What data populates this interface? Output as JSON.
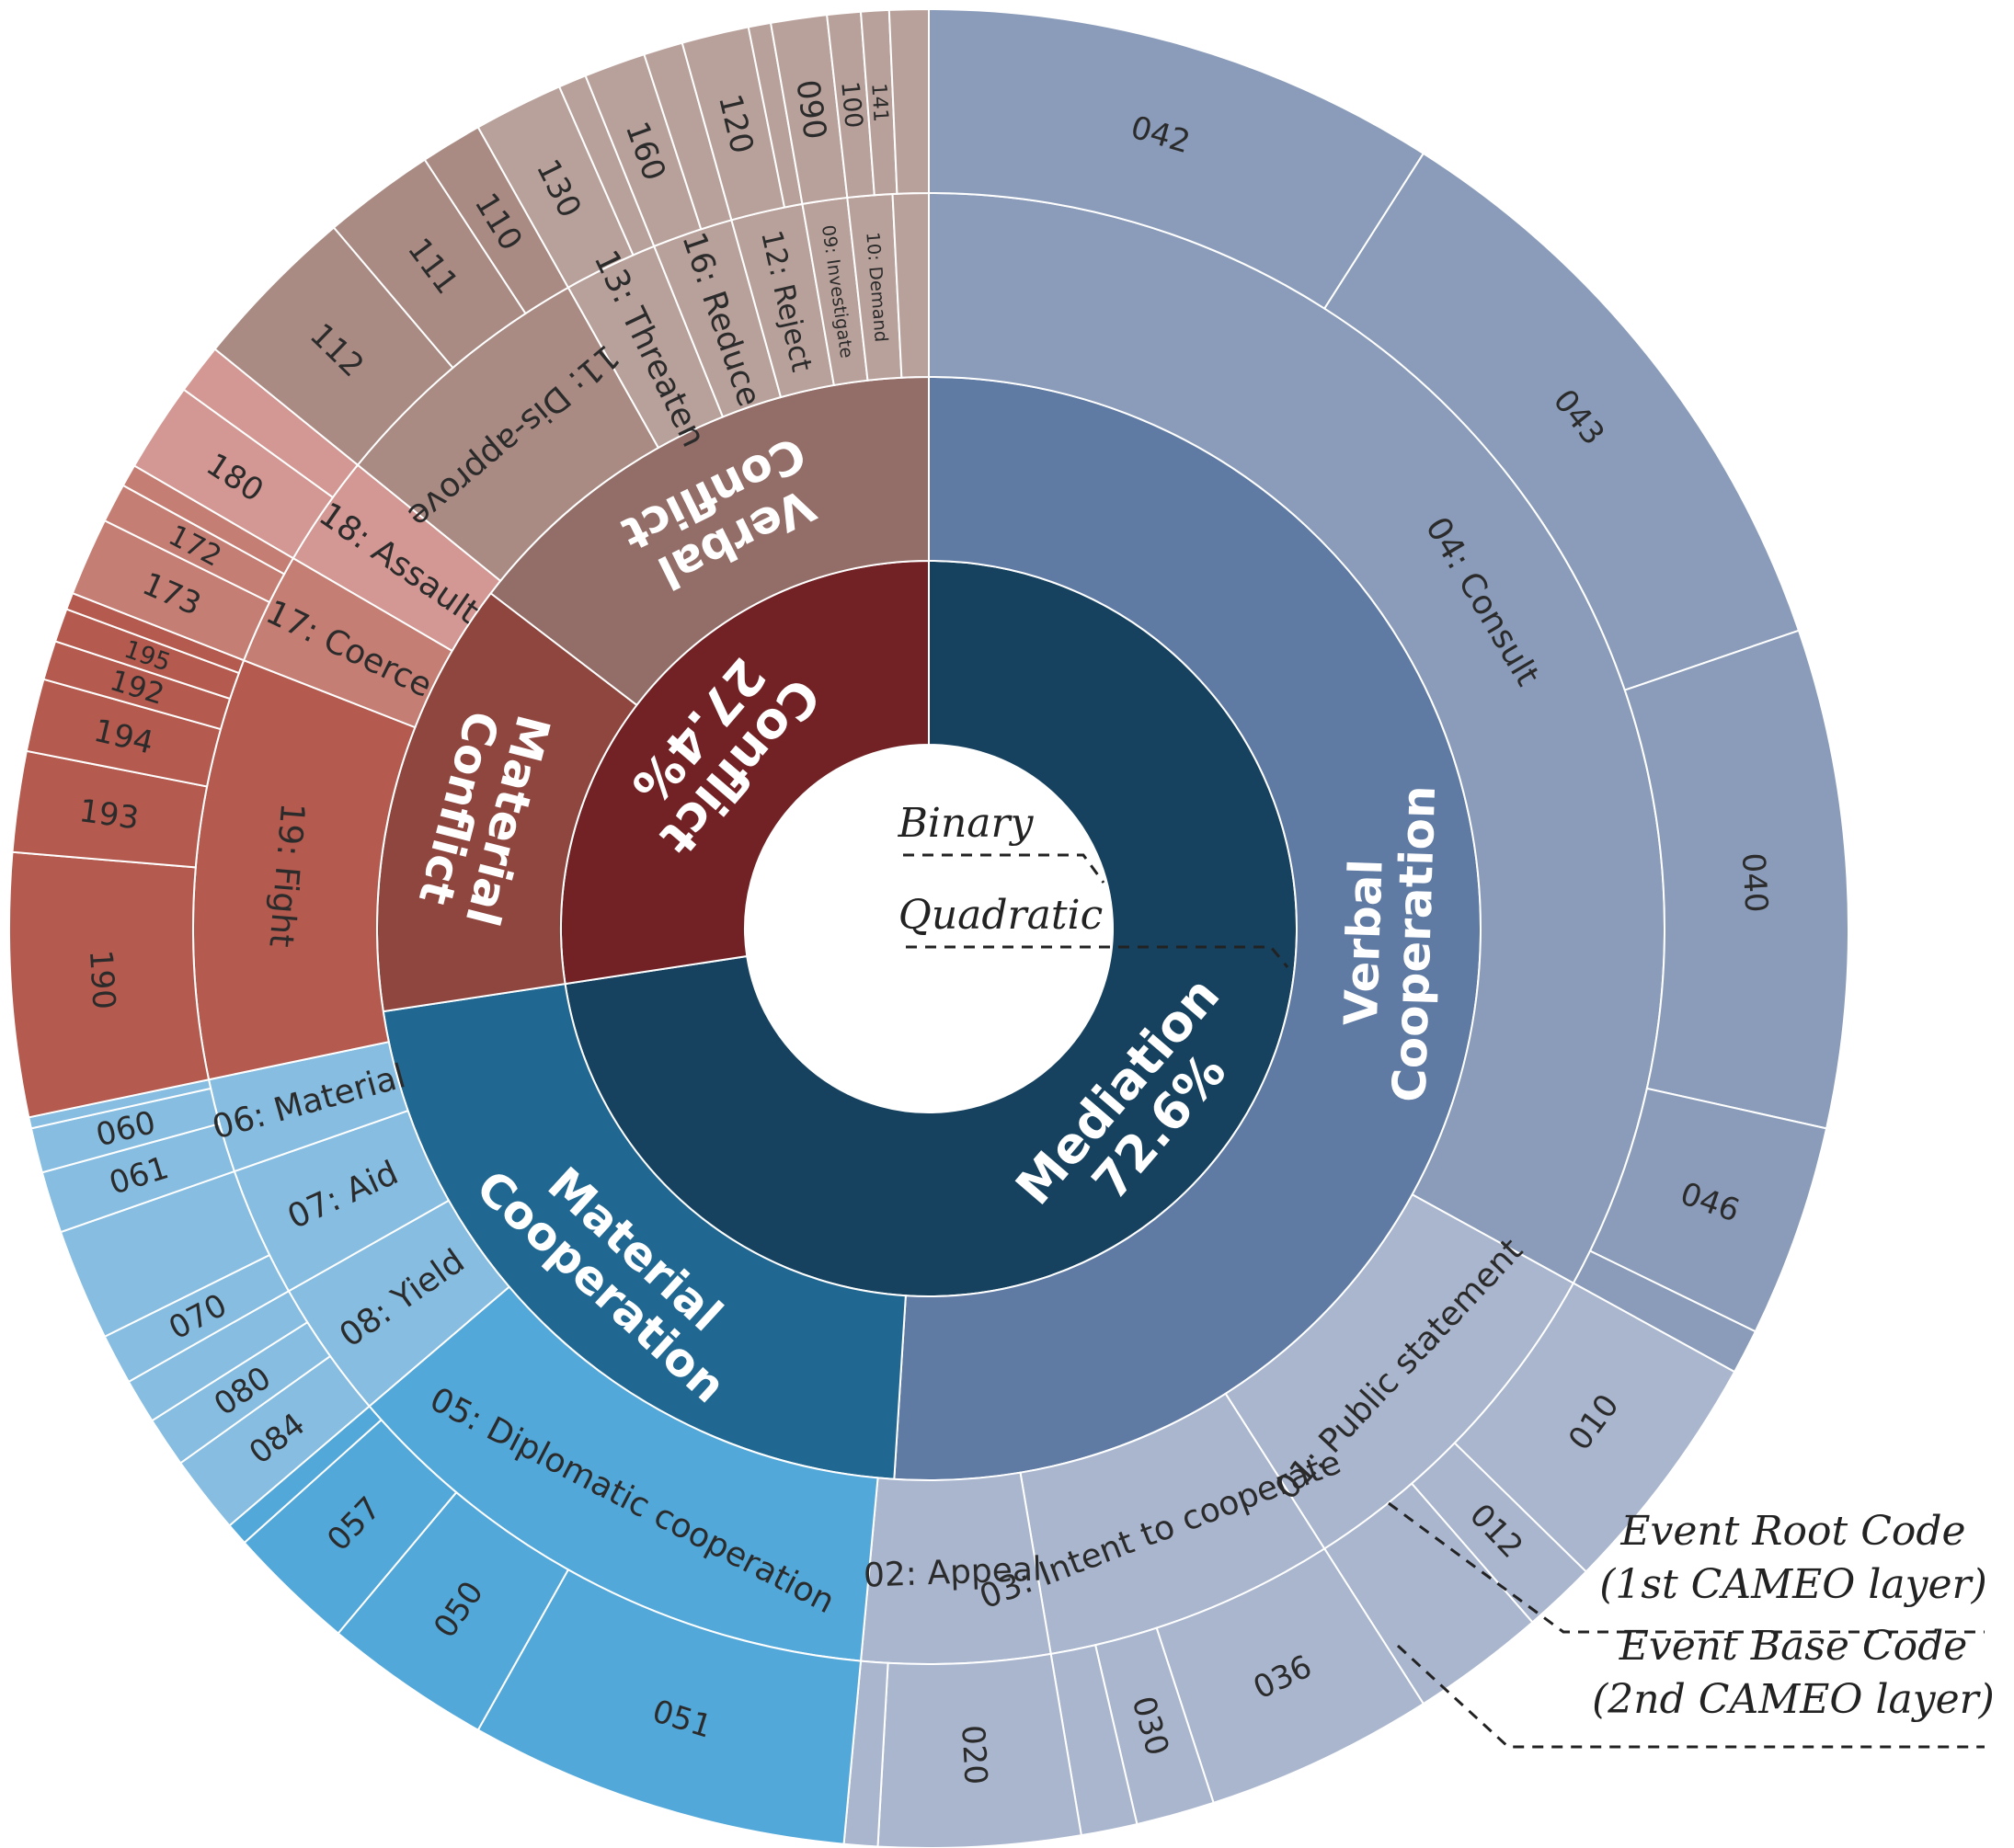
{
  "chart_data": {
    "type": "sunburst",
    "title": "",
    "levels": [
      {
        "name": "Binary"
      },
      {
        "name": "Quadratic"
      },
      {
        "name": "Event Root Code",
        "subname": "(1st CAMEO layer)"
      },
      {
        "name": "Event Base Code",
        "subname": "(2nd CAMEO layer)"
      }
    ],
    "colors": {
      "mediation": "#16425f",
      "verbal_cooperation": "#5f7aa3",
      "verbal_cooperation_outer": "#8a9cb9",
      "verbal_cooperation_light": "#a9b6ce",
      "material_cooperation": "#206791",
      "diplomatic": "#53a8da",
      "material_coop_light": "#86bde1",
      "conflict": "#722225",
      "material_conflict": "#8e463f",
      "fight": "#b45a4e",
      "coerce": "#c57e74",
      "assault": "#d39893",
      "verbal_conflict": "#936d67",
      "verbal_conflict_light": "#a98b84",
      "verbal_conflict_lighter": "#b9a19b"
    },
    "binary": [
      {
        "label": "Mediation",
        "value_label": "72.6%",
        "value": 72.6,
        "color_key": "mediation"
      },
      {
        "label": "Conflict",
        "value_label": "27.4%",
        "value": 27.4,
        "color_key": "conflict"
      }
    ],
    "quadratic": [
      {
        "label": "Verbal Cooperation",
        "value": 51.0,
        "color_key": "verbal_cooperation"
      },
      {
        "label": "Material Cooperation",
        "value": 21.6,
        "color_key": "material_cooperation"
      },
      {
        "label": "Material Conflict",
        "value": 12.8,
        "color_key": "material_conflict"
      },
      {
        "label": "Verbal Conflict",
        "value": 14.6,
        "color_key": "verbal_conflict"
      }
    ],
    "root_codes": [
      {
        "label": "04: Consult",
        "value": 33.6,
        "color_key": "verbal_cooperation_outer"
      },
      {
        "label": "01: Public statement",
        "value": 8.1,
        "color_key": "verbal_cooperation_light"
      },
      {
        "label": "03: Intent to cooperate",
        "value": 6.5,
        "color_key": "verbal_cooperation_light"
      },
      {
        "label": "02: Appeal",
        "value": 4.2,
        "color_key": "verbal_cooperation_light"
      },
      {
        "label": "05: Diplomatic cooperation",
        "value": 12.5,
        "color_key": "diplomatic"
      },
      {
        "label": "08: Yield",
        "value": 3.1,
        "color_key": "material_coop_light"
      },
      {
        "label": "07: Aid",
        "value": 2.9,
        "color_key": "material_coop_light"
      },
      {
        "label": "06: Material",
        "value": 2.1,
        "color_key": "material_coop_light"
      },
      {
        "label": "19: Fight",
        "value": 9.4,
        "color_key": "fight"
      },
      {
        "label": "17: Coerce",
        "value": 2.5,
        "color_key": "coerce"
      },
      {
        "label": "18: Assault",
        "value": 2.5,
        "color_key": "assault"
      },
      {
        "label": "11: Dis-approve",
        "value": 6.1,
        "color_key": "verbal_conflict_light"
      },
      {
        "label": "13: Threaten",
        "value": 2.1,
        "color_key": "verbal_conflict_lighter"
      },
      {
        "label": "16: Reduce",
        "value": 1.8,
        "color_key": "verbal_conflict_lighter"
      },
      {
        "label": "12: Reject",
        "value": 1.6,
        "color_key": "verbal_conflict_lighter"
      },
      {
        "label": "09: Investigate",
        "value": 1.0,
        "color_key": "verbal_conflict_lighter"
      },
      {
        "label": "10: Demand",
        "value": 1.0,
        "color_key": "verbal_conflict_lighter"
      },
      {
        "label": "",
        "value": 0.8,
        "color_key": "verbal_conflict_lighter"
      }
    ],
    "base_codes": [
      {
        "label": "042",
        "value": 9.2,
        "color_key": "verbal_cooperation_outer"
      },
      {
        "label": "043",
        "value": 10.9,
        "color_key": "verbal_cooperation_outer"
      },
      {
        "label": "040",
        "value": 8.9,
        "color_key": "verbal_cooperation_outer"
      },
      {
        "label": "046",
        "value": 3.8,
        "color_key": "verbal_cooperation_outer"
      },
      {
        "label": "",
        "value": 0.8,
        "color_key": "verbal_cooperation_outer"
      },
      {
        "label": "010",
        "value": 4.4,
        "color_key": "verbal_cooperation_light"
      },
      {
        "label": "012",
        "value": 1.3,
        "color_key": "verbal_cooperation_light"
      },
      {
        "label": "",
        "value": 2.4,
        "color_key": "verbal_cooperation_light"
      },
      {
        "label": "036",
        "value": 4.1,
        "color_key": "verbal_cooperation_light"
      },
      {
        "label": "030",
        "value": 1.4,
        "color_key": "verbal_cooperation_light"
      },
      {
        "label": "",
        "value": 1.0,
        "color_key": "verbal_cooperation_light"
      },
      {
        "label": "020",
        "value": 3.6,
        "color_key": "verbal_cooperation_light"
      },
      {
        "label": "",
        "value": 0.6,
        "color_key": "verbal_cooperation_light"
      },
      {
        "label": "051",
        "value": 6.8,
        "color_key": "diplomatic"
      },
      {
        "label": "050",
        "value": 3.0,
        "color_key": "diplomatic"
      },
      {
        "label": "057",
        "value": 2.3,
        "color_key": "diplomatic"
      },
      {
        "label": "",
        "value": 0.4,
        "color_key": "diplomatic"
      },
      {
        "label": "084",
        "value": 1.4,
        "color_key": "material_coop_light"
      },
      {
        "label": "080",
        "value": 0.9,
        "color_key": "material_coop_light"
      },
      {
        "label": "",
        "value": 0.8,
        "color_key": "material_coop_light"
      },
      {
        "label": "070",
        "value": 0.9,
        "color_key": "material_coop_light"
      },
      {
        "label": "",
        "value": 2.0,
        "color_key": "material_coop_light"
      },
      {
        "label": "061",
        "value": 1.1,
        "color_key": "material_coop_light"
      },
      {
        "label": "060",
        "value": 0.8,
        "color_key": "material_coop_light"
      },
      {
        "label": "",
        "value": 0.2,
        "color_key": "material_coop_light"
      },
      {
        "label": "190",
        "value": 4.7,
        "color_key": "fight"
      },
      {
        "label": "193",
        "value": 1.8,
        "color_key": "fight"
      },
      {
        "label": "194",
        "value": 1.3,
        "color_key": "fight"
      },
      {
        "label": "192",
        "value": 0.7,
        "color_key": "fight"
      },
      {
        "label": "195",
        "value": 0.6,
        "color_key": "fight"
      },
      {
        "label": "",
        "value": 0.3,
        "color_key": "fight"
      },
      {
        "label": "173",
        "value": 1.4,
        "color_key": "coerce"
      },
      {
        "label": "172",
        "value": 0.7,
        "color_key": "coerce"
      },
      {
        "label": "",
        "value": 0.4,
        "color_key": "coerce"
      },
      {
        "label": "180",
        "value": 1.6,
        "color_key": "assault"
      },
      {
        "label": "",
        "value": 0.9,
        "color_key": "assault"
      },
      {
        "label": "112",
        "value": 3.0,
        "color_key": "verbal_conflict_light"
      },
      {
        "label": "111",
        "value": 2.0,
        "color_key": "verbal_conflict_light"
      },
      {
        "label": "110",
        "value": 1.1,
        "color_key": "verbal_conflict_light"
      },
      {
        "label": "130",
        "value": 1.6,
        "color_key": "verbal_conflict_lighter"
      },
      {
        "label": "",
        "value": 0.5,
        "color_key": "verbal_conflict_lighter"
      },
      {
        "label": "160",
        "value": 1.1,
        "color_key": "verbal_conflict_lighter"
      },
      {
        "label": "",
        "value": 0.7,
        "color_key": "verbal_conflict_lighter"
      },
      {
        "label": "120",
        "value": 1.2,
        "color_key": "verbal_conflict_lighter"
      },
      {
        "label": "",
        "value": 0.4,
        "color_key": "verbal_conflict_lighter"
      },
      {
        "label": "090",
        "value": 1.0,
        "color_key": "verbal_conflict_lighter"
      },
      {
        "label": "100",
        "value": 0.6,
        "color_key": "verbal_conflict_lighter"
      },
      {
        "label": "141",
        "value": 0.5,
        "color_key": "verbal_conflict_lighter"
      },
      {
        "label": "",
        "value": 0.7,
        "color_key": "verbal_conflict_lighter"
      }
    ]
  }
}
